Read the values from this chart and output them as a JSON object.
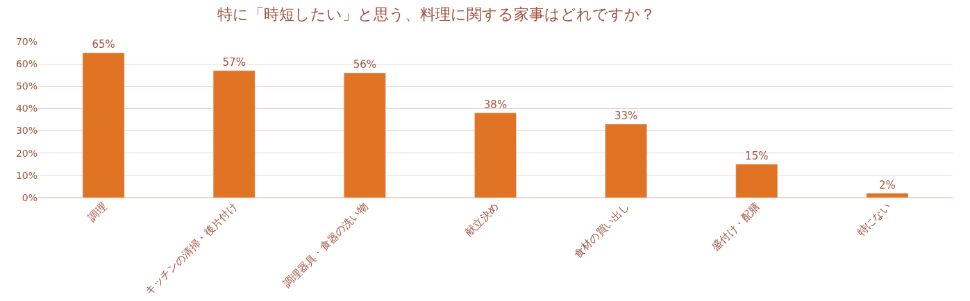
{
  "chart_data": {
    "type": "bar",
    "title": "特に「時短したい」と思う、料理に関する家事はどれですか？",
    "categories": [
      "調理",
      "キッチンの清掃・後片付け",
      "調理器具・食器の洗い物",
      "献立決め",
      "食材の買い出し",
      "盛付け・配膳",
      "特にない"
    ],
    "values": [
      65,
      57,
      56,
      38,
      33,
      15,
      2
    ],
    "value_labels": [
      "65%",
      "57%",
      "56%",
      "38%",
      "33%",
      "15%",
      "2%"
    ],
    "color": "#e07424",
    "ylim": [
      0,
      70
    ],
    "yticks": [
      {
        "value": 0,
        "label": "0%"
      },
      {
        "value": 10,
        "label": "10%"
      },
      {
        "value": 20,
        "label": "20%"
      },
      {
        "value": 30,
        "label": "30%"
      },
      {
        "value": 40,
        "label": "40%"
      },
      {
        "value": 50,
        "label": "50%"
      },
      {
        "value": 60,
        "label": "60%"
      },
      {
        "value": 70,
        "label": "70%"
      }
    ],
    "grid": "y",
    "legend": false
  }
}
